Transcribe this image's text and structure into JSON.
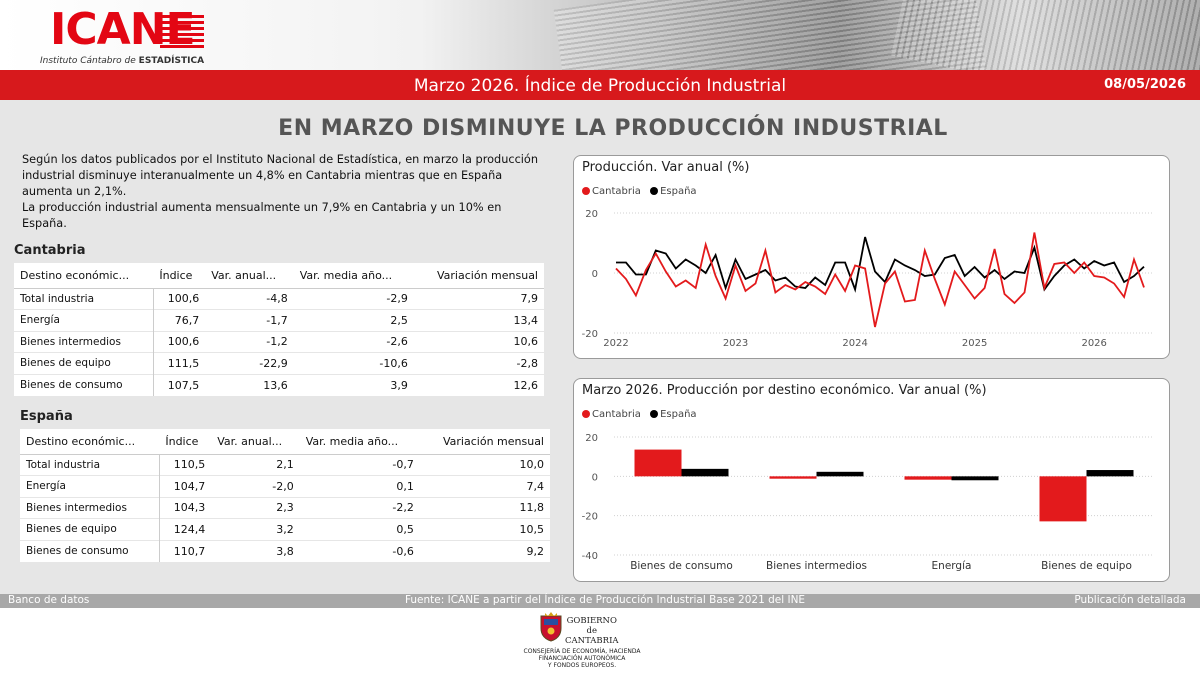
{
  "header": {
    "logo_text": "ICANE",
    "logo_sub_prefix": "Instituto Cántabro de",
    "logo_sub_bold": "ESTADÍSTICA",
    "title": "Marzo 2026. Índice de Producción Industrial",
    "date": "08/05/2026"
  },
  "headline": "EN MARZO DISMINUYE LA PRODUCCIÓN INDUSTRIAL",
  "intro": {
    "p1": "Según los datos publicados por el Instituto Nacional de Estadística, en marzo la producción industrial disminuye interanualmente un 4,8% en Cantabria mientras que en España aumenta un 2,1%.",
    "p2": "La producción industrial aumenta mensualmente un 7,9% en Cantabria y un 10% en España."
  },
  "table_headers": [
    "Destino económic...",
    "Índice",
    "Var. anual...",
    "Var. media año...",
    "Variación mensual"
  ],
  "cantabria": {
    "title": "Cantabria",
    "rows": [
      [
        "Total industria",
        "100,6",
        "-4,8",
        "-2,9",
        "7,9"
      ],
      [
        "Energía",
        "76,7",
        "-1,7",
        "2,5",
        "13,4"
      ],
      [
        "Bienes intermedios",
        "100,6",
        "-1,2",
        "-2,6",
        "10,6"
      ],
      [
        "Bienes de equipo",
        "111,5",
        "-22,9",
        "-10,6",
        "-2,8"
      ],
      [
        "Bienes de consumo",
        "107,5",
        "13,6",
        "3,9",
        "12,6"
      ]
    ]
  },
  "espana": {
    "title": "España",
    "rows": [
      [
        "Total industria",
        "110,5",
        "2,1",
        "-0,7",
        "10,0"
      ],
      [
        "Energía",
        "104,7",
        "-2,0",
        "0,1",
        "7,4"
      ],
      [
        "Bienes intermedios",
        "104,3",
        "2,3",
        "-2,2",
        "11,8"
      ],
      [
        "Bienes de equipo",
        "124,4",
        "3,2",
        "0,5",
        "10,5"
      ],
      [
        "Bienes de consumo",
        "110,7",
        "3,8",
        "-0,6",
        "9,2"
      ]
    ]
  },
  "colors": {
    "cantabria": "#e31a1c",
    "espana": "#000000",
    "brand_red": "#d7191c"
  },
  "chart_data": [
    {
      "type": "line",
      "title": "Producción. Var anual (%)",
      "ylim": [
        -20,
        20
      ],
      "yticks": [
        -20,
        0,
        20
      ],
      "xticks": [
        "2022",
        "2023",
        "2024",
        "2025",
        "2026"
      ],
      "grid": "horizontal dashed",
      "legend": "top-left",
      "x_start": "2022-01",
      "series": [
        {
          "name": "Cantabria",
          "color": "#e31a1c",
          "values": [
            1.5,
            -2.0,
            -7.5,
            1.0,
            6.5,
            0.5,
            -4.5,
            -2.5,
            -5.0,
            9.5,
            -1.0,
            -8.5,
            2.5,
            -6.0,
            -3.5,
            7.5,
            -6.5,
            -4.0,
            -5.5,
            -3.0,
            -4.5,
            -7.0,
            -0.5,
            -6.0,
            2.5,
            1.5,
            -18.0,
            -3.5,
            0.5,
            -9.5,
            -9.0,
            7.5,
            -2.0,
            -10.5,
            0.5,
            -4.0,
            -8.5,
            -5.0,
            8.0,
            -7.0,
            -10.0,
            -6.5,
            13.5,
            -5.0,
            3.0,
            3.5,
            0.0,
            3.5,
            -1.0,
            -1.5,
            -3.5,
            -8.0,
            4.5,
            -4.8
          ]
        },
        {
          "name": "España",
          "color": "#000000",
          "values": [
            3.5,
            3.5,
            -0.5,
            -0.5,
            7.5,
            6.5,
            1.5,
            4.5,
            2.5,
            0.0,
            6.0,
            -5.0,
            4.5,
            -2.0,
            -0.5,
            1.0,
            -2.5,
            -1.5,
            -4.5,
            -5.0,
            -1.5,
            -4.0,
            3.5,
            3.5,
            -5.5,
            12.0,
            0.5,
            -3.0,
            4.5,
            2.5,
            1.0,
            -1.0,
            -0.5,
            5.0,
            6.0,
            -1.0,
            2.0,
            -1.5,
            1.0,
            -2.0,
            0.5,
            0.0,
            8.5,
            -5.5,
            -1.0,
            2.5,
            4.5,
            1.5,
            4.0,
            2.5,
            3.5,
            -3.0,
            -1.0,
            2.1
          ]
        }
      ]
    },
    {
      "type": "bar",
      "title": "Marzo 2026. Producción por destino económico. Var anual (%)",
      "categories": [
        "Bienes de consumo",
        "Bienes intermedios",
        "Energía",
        "Bienes de equipo"
      ],
      "ylim": [
        -40,
        20
      ],
      "yticks": [
        -40,
        -20,
        0,
        20
      ],
      "grid": "horizontal dashed",
      "legend": "top-left",
      "series": [
        {
          "name": "Cantabria",
          "color": "#e31a1c",
          "values": [
            13.6,
            -1.2,
            -1.7,
            -22.9
          ]
        },
        {
          "name": "España",
          "color": "#000000",
          "values": [
            3.8,
            2.3,
            -2.0,
            3.2
          ]
        }
      ]
    }
  ],
  "footer": {
    "left": "Banco de datos",
    "center": "Fuente: ICANE a partir del Índice de Producción Industrial Base 2021 del INE",
    "right": "Publicación detallada"
  },
  "gobierno": {
    "line1": "GOBIERNO",
    "line2": "de",
    "line3": "CANTABRIA",
    "dept1": "CONSEJERÍA DE ECONOMÍA, HACIENDA",
    "dept2": "FINANCIACIÓN AUTONÓMICA",
    "dept3": "Y FONDOS EUROPEOS."
  }
}
